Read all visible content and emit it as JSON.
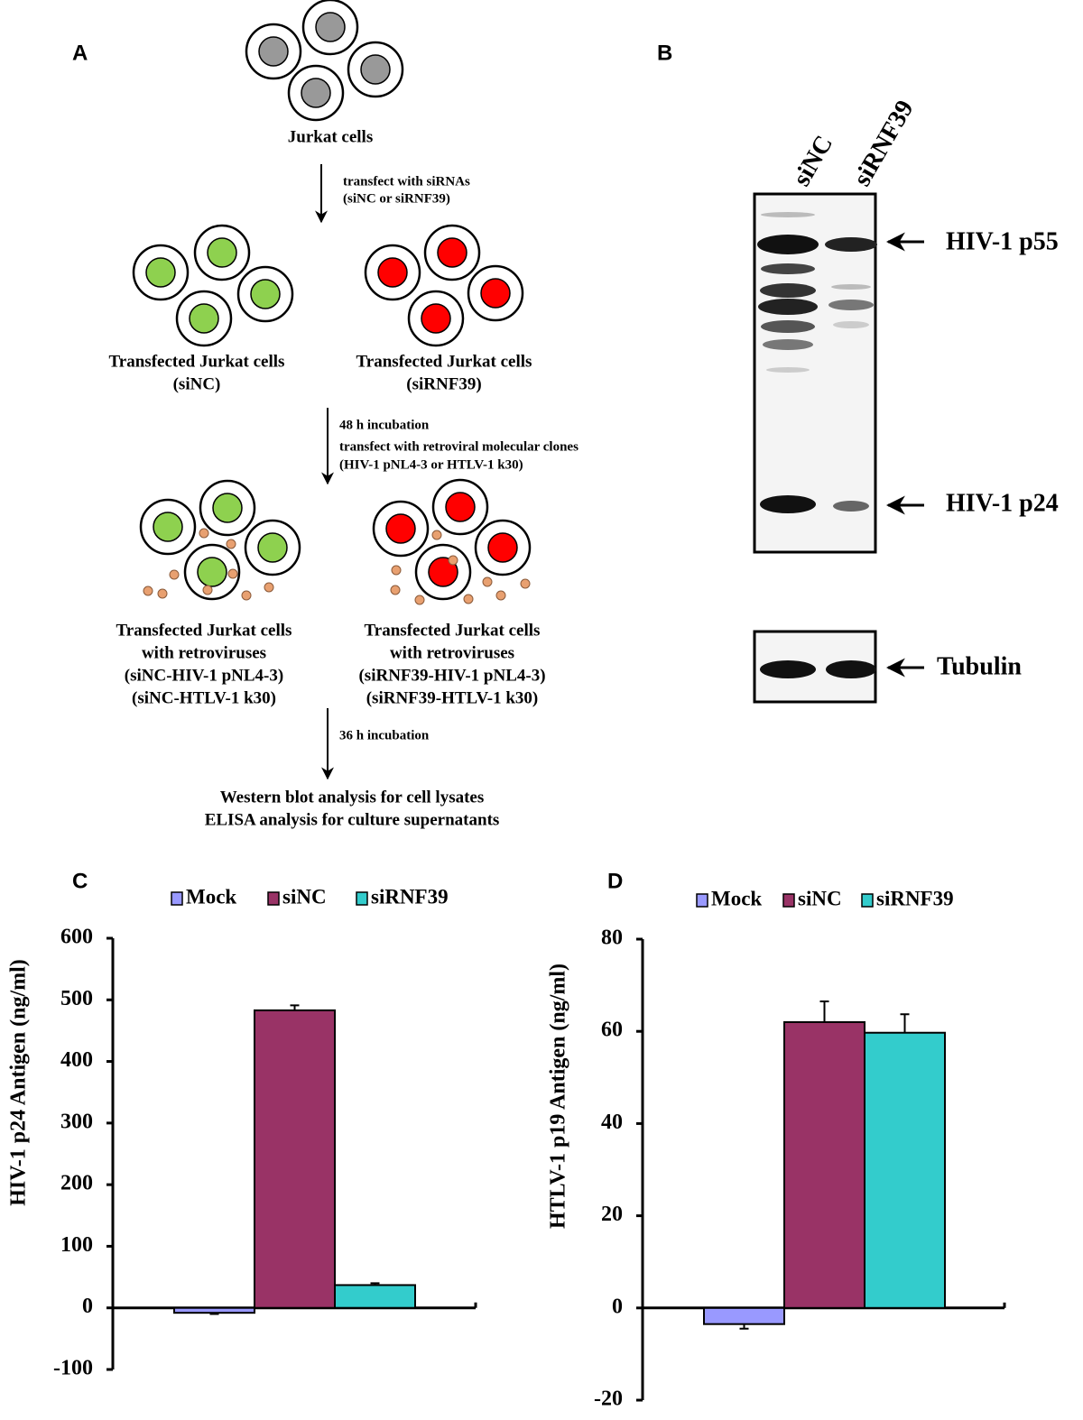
{
  "diagram": {
    "panel": "A",
    "start": "Jurkat cells",
    "step1": [
      "transfect with siRNAs",
      "(siNC or siRNF39)"
    ],
    "group1_left": [
      "Transfected Jurkat cells",
      "(siNC)"
    ],
    "group1_right": [
      "Transfected Jurkat cells",
      "(siRNF39)"
    ],
    "step2": [
      "48 h incubation",
      "transfect with retroviral molecular clones",
      "(HIV-1 pNL4-3 or HTLV-1 k30)"
    ],
    "group2_left": [
      "Transfected Jurkat cells",
      "with retroviruses",
      "(siNC-HIV-1 pNL4-3)",
      "(siNC-HTLV-1 k30)"
    ],
    "group2_right": [
      "Transfected Jurkat cells",
      "with retroviruses",
      "(siRNF39-HIV-1 pNL4-3)",
      "(siRNF39-HTLV-1 k30)"
    ],
    "step3": "36 h incubation",
    "analysis": [
      "Western blot analysis for cell lysates",
      "ELISA analysis for culture supernatants"
    ]
  },
  "blot": {
    "panel": "B",
    "lanes": [
      "siNC",
      "siRNF39"
    ],
    "bands": [
      "HIV-1 p55",
      "HIV-1 p24",
      "Tubulin"
    ]
  },
  "chart_data": [
    {
      "type": "bar",
      "panel": "C",
      "y_label": "HIV-1 p24 Antigen (ng/ml)",
      "categories": [
        null
      ],
      "series": [
        {
          "name": "Mock",
          "color": "#9999ff",
          "values": [
            -8
          ],
          "errors": [
            2
          ]
        },
        {
          "name": "siNC",
          "color": "#993366",
          "values": [
            483
          ],
          "errors": [
            8
          ]
        },
        {
          "name": "siRNF39",
          "color": "#33cccc",
          "values": [
            37
          ],
          "errors": [
            3
          ]
        }
      ],
      "ylim": [
        -100,
        600
      ],
      "yticks": [
        -100,
        0,
        100,
        200,
        300,
        400,
        500,
        600
      ],
      "legend": "top"
    },
    {
      "type": "bar",
      "panel": "D",
      "y_label": "HTLV-1 p19 Antigen (ng/ml)",
      "categories": [
        null
      ],
      "series": [
        {
          "name": "Mock",
          "color": "#9999ff",
          "values": [
            -3.5
          ],
          "errors": [
            1
          ]
        },
        {
          "name": "siNC",
          "color": "#993366",
          "values": [
            62
          ],
          "errors": [
            4.5
          ]
        },
        {
          "name": "siRNF39",
          "color": "#33cccc",
          "values": [
            59.7
          ],
          "errors": [
            4
          ]
        }
      ],
      "ylim": [
        -20,
        80
      ],
      "yticks": [
        -20,
        0,
        20,
        40,
        60,
        80
      ],
      "legend": "top"
    }
  ]
}
